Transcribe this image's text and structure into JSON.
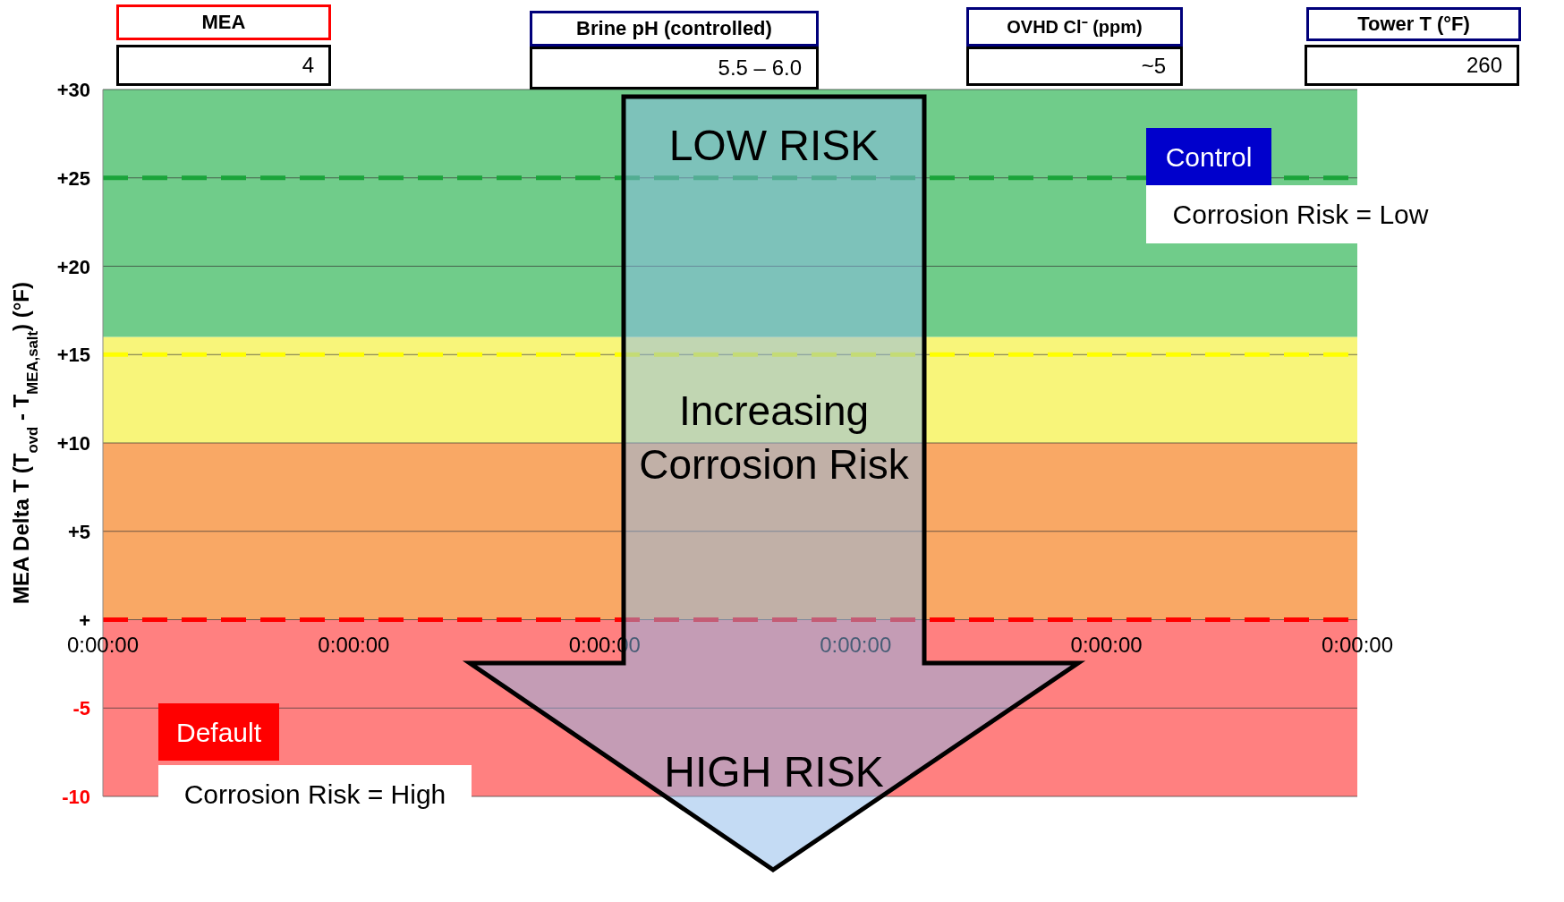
{
  "chart_data": {
    "type": "line",
    "ylabel": "MEA Delta T (T$_{ovd}$ - T$_{MEA,salt}$) (°F)",
    "categories": [
      "0:00:00",
      "0:00:00",
      "0:00:00",
      "0:00:00",
      "0:00:00",
      "0:00:00"
    ],
    "ylim": [
      -10,
      30
    ],
    "yticks": [
      {
        "value": 30,
        "label": "+30"
      },
      {
        "value": 25,
        "label": "+25"
      },
      {
        "value": 20,
        "label": "+20"
      },
      {
        "value": 15,
        "label": "+15"
      },
      {
        "value": 10,
        "label": "+10"
      },
      {
        "value": 5,
        "label": "+5"
      },
      {
        "value": 0,
        "label": "+"
      },
      -5,
      -10
    ],
    "grid": "y",
    "bands": [
      {
        "axis": "y",
        "from": -10,
        "to": 0,
        "color": "#ff8080"
      },
      {
        "axis": "y",
        "from": 0,
        "to": 10,
        "color": "#f9a865"
      },
      {
        "axis": "y",
        "from": 10,
        "to": 16,
        "color": "#f8f57a"
      },
      {
        "axis": "y",
        "from": 16,
        "to": 30,
        "color": "#70cc8a"
      }
    ],
    "ref_lines": [
      {
        "axis": "y",
        "value": 25,
        "color": "#1aa33a",
        "line_style": "dashed"
      },
      {
        "axis": "y",
        "value": 15,
        "color": "#ffff00",
        "line_style": "dashed"
      },
      {
        "axis": "y",
        "value": 0,
        "color": "#ff0000",
        "line_style": "dashed"
      }
    ],
    "annotations": [
      "MEA",
      "4",
      "Brine pH (controlled)",
      "5.5 – 6.0",
      "OVHD Cl⁻ (ppm)",
      "~5",
      "Tower T (°F)",
      "260",
      "LOW RISK",
      "Increasing Corrosion Risk",
      "HIGH RISK",
      "Control",
      "Corrosion Risk = Low",
      "Default",
      "Corrosion Risk = High"
    ]
  }
}
